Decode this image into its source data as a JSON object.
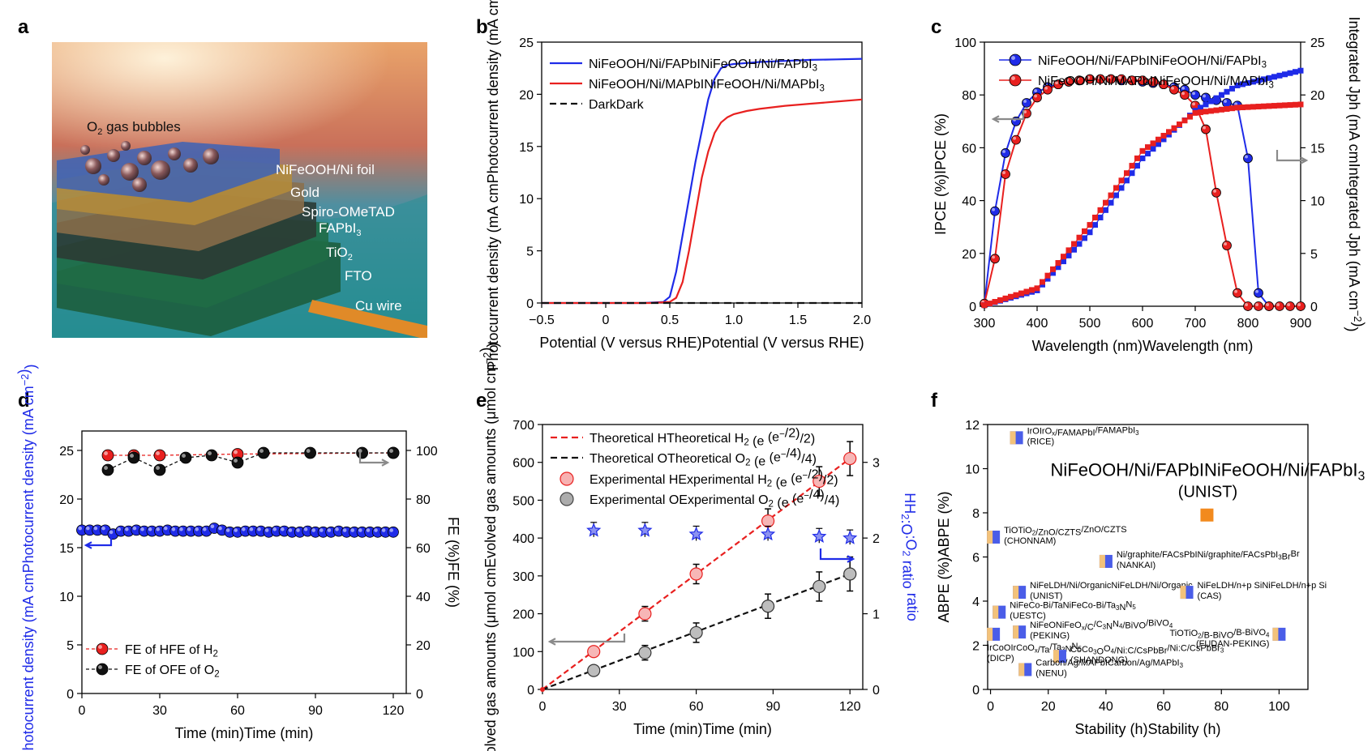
{
  "figure": {
    "panels": [
      {
        "id": "a",
        "letter": "a"
      },
      {
        "id": "b",
        "letter": "b"
      },
      {
        "id": "c",
        "letter": "c"
      },
      {
        "id": "d",
        "letter": "d"
      },
      {
        "id": "e",
        "letter": "e"
      },
      {
        "id": "f",
        "letter": "f"
      }
    ],
    "colors": {
      "blue": "#1f2be8",
      "red": "#e8201f",
      "black": "#111111",
      "orange": "#f28a1e",
      "gray": "#8a8a8a"
    }
  },
  "schematic": {
    "labels": [
      {
        "key": "bubbles",
        "base": "O",
        "sub": "2",
        "rest": " gas bubbles"
      },
      {
        "key": "nifeooh",
        "base": "NiFeOOH/Ni foil",
        "sub": "",
        "rest": ""
      },
      {
        "key": "gold",
        "base": "Gold",
        "sub": "",
        "rest": ""
      },
      {
        "key": "spiro",
        "base": "Spiro-OMeTAD",
        "sub": "",
        "rest": ""
      },
      {
        "key": "fapbi",
        "base": "FAPbI",
        "sub": "3",
        "rest": ""
      },
      {
        "key": "tio2",
        "base": "TiO",
        "sub": "2",
        "rest": ""
      },
      {
        "key": "fto",
        "base": "FTO",
        "sub": "",
        "rest": ""
      },
      {
        "key": "cu",
        "base": "Cu wire",
        "sub": "",
        "rest": ""
      }
    ]
  },
  "chart_data": [
    {
      "panel": "b",
      "type": "line",
      "xlabel": "Potential (V versus RHE)",
      "ylabel": "Photocurrent density (mA cm−2)",
      "xlim": [
        -0.5,
        2.0
      ],
      "ylim": [
        0,
        25
      ],
      "xticks": [
        -0.5,
        0,
        0.5,
        1.0,
        1.5,
        2.0
      ],
      "xtick_labels": [
        "−0.5",
        "0",
        "0.5",
        "1.0",
        "1.5",
        "2.0"
      ],
      "yticks": [
        0,
        5,
        10,
        15,
        20,
        25
      ],
      "series": [
        {
          "name": "NiFeOOH/Ni/FAPbI3",
          "color": "#1f2be8",
          "x": [
            -0.5,
            0.3,
            0.45,
            0.5,
            0.55,
            0.6,
            0.65,
            0.7,
            0.75,
            0.8,
            0.85,
            0.9,
            0.95,
            1.0,
            1.1,
            1.2,
            1.4,
            1.6,
            1.8,
            2.0
          ],
          "y": [
            0,
            0,
            0.1,
            0.6,
            3,
            6.5,
            10,
            13.5,
            16.5,
            19.5,
            21.5,
            22.5,
            22.8,
            22.9,
            23.0,
            23.1,
            23.2,
            23.3,
            23.35,
            23.4
          ]
        },
        {
          "name": "NiFeOOH/Ni/MAPbI3",
          "color": "#e8201f",
          "x": [
            -0.5,
            0.35,
            0.5,
            0.55,
            0.6,
            0.65,
            0.7,
            0.75,
            0.8,
            0.85,
            0.9,
            0.95,
            1.0,
            1.1,
            1.2,
            1.4,
            1.6,
            1.8,
            2.0
          ],
          "y": [
            0,
            0,
            0.1,
            0.5,
            2,
            5,
            8.5,
            12,
            14.5,
            16.3,
            17.3,
            17.8,
            18.1,
            18.4,
            18.6,
            18.9,
            19.1,
            19.3,
            19.5
          ]
        },
        {
          "name": "Dark",
          "color": "#111111",
          "dash": true,
          "x": [
            -0.5,
            2.0
          ],
          "y": [
            0,
            0
          ]
        }
      ],
      "legend": [
        "NiFeOOH/Ni/FAPbI3",
        "NiFeOOH/Ni/MAPbI3",
        "Dark"
      ]
    },
    {
      "panel": "c",
      "type": "line",
      "xlabel": "Wavelength (nm)",
      "ylabel": "IPCE (%)",
      "y2label": "Integrated Jph (mA cm−2)",
      "xlim": [
        300,
        900
      ],
      "ylim": [
        0,
        100
      ],
      "y2lim": [
        0,
        25
      ],
      "xticks": [
        300,
        400,
        500,
        600,
        700,
        800,
        900
      ],
      "yticks": [
        0,
        20,
        40,
        60,
        80,
        100
      ],
      "y2ticks": [
        0,
        5,
        10,
        15,
        20,
        25
      ],
      "series": [
        {
          "name": "NiFeOOH/Ni/FAPbI3",
          "color": "#1f2be8",
          "x": [
            300,
            320,
            340,
            360,
            380,
            400,
            420,
            440,
            460,
            480,
            500,
            520,
            540,
            560,
            580,
            600,
            620,
            640,
            660,
            680,
            700,
            720,
            740,
            760,
            780,
            800,
            820,
            840
          ],
          "y": [
            1,
            36,
            58,
            70,
            77,
            81,
            83,
            84,
            85,
            85.5,
            86,
            86,
            86,
            85.5,
            85.5,
            85,
            84.5,
            84,
            83,
            82,
            80,
            79,
            78,
            77,
            76,
            56,
            5,
            0
          ]
        },
        {
          "name": "NiFeOOH/Ni/MAPbI3",
          "color": "#e8201f",
          "x": [
            300,
            320,
            340,
            360,
            380,
            400,
            420,
            440,
            460,
            480,
            500,
            520,
            540,
            560,
            580,
            600,
            620,
            640,
            660,
            680,
            700,
            720,
            740,
            760,
            780,
            800,
            820,
            840,
            860,
            880,
            900
          ],
          "y": [
            1,
            18,
            50,
            63,
            73,
            79,
            82,
            84,
            85,
            85.5,
            86,
            86,
            86,
            86,
            85.5,
            85.5,
            85,
            84,
            82,
            80,
            76,
            67,
            43,
            23,
            5,
            0,
            0,
            0,
            0,
            0,
            0
          ]
        },
        {
          "name": "Integrated (FAPbI3)",
          "color": "#1f2be8",
          "axis": "y2",
          "x": [
            300,
            400,
            500,
            600,
            700,
            780,
            900
          ],
          "y": [
            0.1,
            1.5,
            7,
            14,
            18.5,
            20.9,
            22.3
          ]
        },
        {
          "name": "Integrated (MAPbI3)",
          "color": "#e8201f",
          "axis": "y2",
          "x": [
            300,
            400,
            500,
            600,
            700,
            780,
            900
          ],
          "y": [
            0.1,
            1.7,
            7.7,
            14.7,
            18.3,
            18.8,
            19.1
          ]
        }
      ],
      "legend": [
        "NiFeOOH/Ni/FAPbI3",
        "NiFeOOH/Ni/MAPbI3"
      ]
    },
    {
      "panel": "d",
      "type": "scatter",
      "xlabel": "Time (min)",
      "ylabel": "Photocurrent density (mA cm−2)",
      "y2label": "FE (%)",
      "xlim": [
        0,
        125
      ],
      "ylim": [
        0,
        27
      ],
      "y2lim": [
        0,
        108
      ],
      "xticks": [
        0,
        30,
        60,
        90,
        120
      ],
      "yticks": [
        0,
        5,
        10,
        15,
        20,
        25
      ],
      "y2ticks": [
        0,
        20,
        40,
        60,
        80,
        100
      ],
      "series": [
        {
          "name": "Photocurrent",
          "color": "#1f2be8",
          "x": [
            0,
            3,
            6,
            9,
            12,
            15,
            18,
            21,
            24,
            27,
            30,
            33,
            36,
            39,
            42,
            45,
            48,
            51,
            54,
            57,
            60,
            63,
            66,
            69,
            72,
            75,
            78,
            81,
            84,
            87,
            90,
            93,
            96,
            99,
            102,
            105,
            108,
            111,
            114,
            117,
            120
          ],
          "y": [
            16.8,
            16.8,
            16.8,
            16.8,
            16.4,
            16.7,
            16.7,
            16.8,
            16.7,
            16.7,
            16.7,
            16.8,
            16.7,
            16.7,
            16.7,
            16.7,
            16.7,
            17.0,
            16.8,
            16.6,
            16.6,
            16.7,
            16.7,
            16.7,
            16.6,
            16.7,
            16.7,
            16.6,
            16.6,
            16.7,
            16.6,
            16.6,
            16.6,
            16.7,
            16.6,
            16.6,
            16.6,
            16.6,
            16.6,
            16.6,
            16.6
          ]
        },
        {
          "name": "FE of H2",
          "color": "#e8201f",
          "axis": "y2",
          "x": [
            10,
            20,
            30,
            60,
            120
          ],
          "y": [
            98,
            98,
            98,
            98.5,
            99
          ]
        },
        {
          "name": "FE of O2",
          "color": "#111111",
          "axis": "y2",
          "x": [
            10,
            20,
            30,
            40,
            50,
            60,
            70,
            88,
            108,
            120
          ],
          "y": [
            92,
            97,
            92,
            97,
            98,
            95,
            99,
            99,
            99,
            99
          ]
        }
      ],
      "legend": [
        "FE of H2",
        "FE of O2"
      ]
    },
    {
      "panel": "e",
      "type": "scatter",
      "xlabel": "Time (min)",
      "ylabel": "Evolved gas amounts (μmol cm−2)",
      "y2label": "H2:O2 ratio",
      "xlim": [
        0,
        125
      ],
      "ylim": [
        0,
        700
      ],
      "y2lim": [
        0,
        3.5
      ],
      "xticks": [
        0,
        30,
        60,
        90,
        120
      ],
      "yticks": [
        0,
        100,
        200,
        300,
        400,
        500,
        600,
        700
      ],
      "y2ticks": [
        0,
        1,
        2,
        3
      ],
      "series": [
        {
          "name": "Theoretical H2 (e−/2)",
          "color": "#e8201f",
          "dash": true,
          "x": [
            0,
            120
          ],
          "y": [
            0,
            610
          ]
        },
        {
          "name": "Theoretical O2 (e−/4)",
          "color": "#111111",
          "dash": true,
          "x": [
            0,
            120
          ],
          "y": [
            0,
            305
          ]
        },
        {
          "name": "Experimental H2 (e−/2)",
          "color": "#e8201f",
          "x": [
            20,
            40,
            60,
            88,
            108,
            120
          ],
          "y": [
            100,
            200,
            305,
            445,
            550,
            610
          ]
        },
        {
          "name": "Experimental O2 (e−/4)",
          "color": "#111111",
          "x": [
            20,
            40,
            60,
            88,
            108,
            120
          ],
          "y": [
            50,
            97,
            150,
            220,
            272,
            305
          ]
        },
        {
          "name": "H2:O2 ratio",
          "color": "#1f2be8",
          "axis": "y2",
          "x": [
            20,
            40,
            60,
            88,
            108,
            120
          ],
          "y": [
            2.1,
            2.1,
            2.05,
            2.05,
            2.02,
            2.0
          ]
        }
      ],
      "legend": [
        "Theoretical H2 (e−/2)",
        "Theoretical O2 (e−/4)",
        "Experimental H2 (e−/2)",
        "Experimental O2 (e−/4)"
      ]
    },
    {
      "panel": "f",
      "type": "scatter",
      "xlabel": "Stability (h)",
      "ylabel": "ABPE (%)",
      "xlim": [
        -1,
        110
      ],
      "ylim": [
        0,
        12
      ],
      "xticks": [
        0,
        20,
        40,
        60,
        80,
        100
      ],
      "yticks": [
        0,
        2,
        4,
        6,
        8,
        10,
        12
      ],
      "highlight": {
        "x": 75,
        "y": 7.9,
        "title": "NiFeOOH/Ni/FAPbI3",
        "subtitle": "(UNIST)"
      },
      "points": [
        {
          "x": 9,
          "y": 11.4,
          "label": "IrOx/FAMAPbI3",
          "inst": "(RICE)",
          "side": "right"
        },
        {
          "x": 1,
          "y": 6.9,
          "label": "TiO2/ZnO/CZTS",
          "inst": "(CHONNAM)",
          "side": "right"
        },
        {
          "x": 40,
          "y": 5.8,
          "label": "Ni/graphite/FACsPbI3Br",
          "inst": "(NANKAI)",
          "side": "right"
        },
        {
          "x": 10,
          "y": 4.4,
          "label": "NiFeLDH/Ni/Organic",
          "inst": "(UNIST)",
          "side": "right"
        },
        {
          "x": 68,
          "y": 4.4,
          "label": "NiFeLDH/n+p Si",
          "inst": "(CAS)",
          "side": "right"
        },
        {
          "x": 3,
          "y": 3.5,
          "label": "NiFeCo-Bi/Ta3N5",
          "inst": "(UESTC)",
          "side": "right"
        },
        {
          "x": 1,
          "y": 2.5,
          "label": "IrCoOx/Ta3N5",
          "inst": "(DICP)",
          "side": "below"
        },
        {
          "x": 10,
          "y": 2.6,
          "label": "NiFeOx/C3N4/BiVO4",
          "inst": "(PEKING)",
          "side": "right"
        },
        {
          "x": 100,
          "y": 2.5,
          "label": "TiO2/B-BiVO4",
          "inst": "(FUDAN-PEKING)",
          "side": "left"
        },
        {
          "x": 24,
          "y": 1.5,
          "label": "Co3O4/Ni:C/CsPbBr3",
          "inst": "(SHANDONG)",
          "side": "right"
        },
        {
          "x": 12,
          "y": 0.9,
          "label": "Carbon/Ag/MAPbI3",
          "inst": "(NENU)",
          "side": "right"
        }
      ]
    }
  ]
}
